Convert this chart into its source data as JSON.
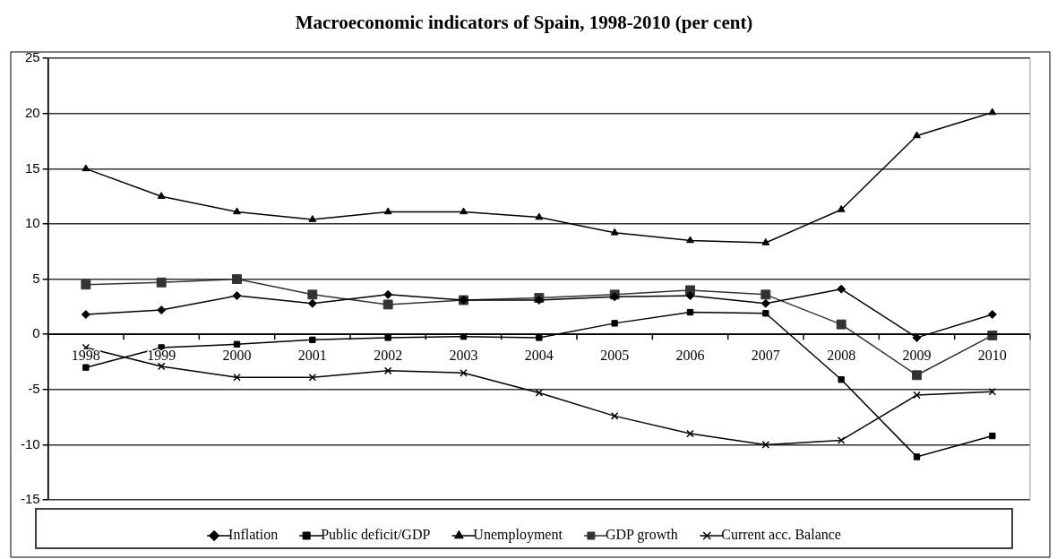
{
  "chart_data": {
    "type": "line",
    "title": "Macroeconomic indicators of Spain, 1998-2010 (per cent)",
    "categories": [
      "1998",
      "1999",
      "2000",
      "2001",
      "2002",
      "2003",
      "2004",
      "2005",
      "2006",
      "2007",
      "2008",
      "2009",
      "2010"
    ],
    "series": [
      {
        "name": "Inflation",
        "color": "#000000",
        "marker": "diamond",
        "values": [
          1.8,
          2.2,
          3.5,
          2.8,
          3.6,
          3.1,
          3.1,
          3.4,
          3.5,
          2.8,
          4.1,
          -0.3,
          1.8
        ]
      },
      {
        "name": "Public deficit/GDP",
        "color": "#000000",
        "marker": "square",
        "values": [
          -3.0,
          -1.2,
          -0.9,
          -0.5,
          -0.3,
          -0.2,
          -0.3,
          1.0,
          2.0,
          1.9,
          -4.1,
          -11.1,
          -9.2
        ]
      },
      {
        "name": "Unemployment",
        "color": "#000000",
        "marker": "triangle",
        "values": [
          15.0,
          12.5,
          11.1,
          10.4,
          11.1,
          11.1,
          10.6,
          9.2,
          8.5,
          8.3,
          11.3,
          18.0,
          20.1
        ]
      },
      {
        "name": "GDP growth",
        "color": "#333333",
        "marker": "square",
        "values": [
          4.5,
          4.7,
          5.0,
          3.6,
          2.7,
          3.1,
          3.3,
          3.6,
          4.0,
          3.6,
          0.9,
          -3.7,
          -0.1
        ]
      },
      {
        "name": "Current acc. Balance",
        "color": "#000000",
        "marker": "cross",
        "values": [
          -1.2,
          -2.9,
          -3.9,
          -3.9,
          -3.3,
          -3.5,
          -5.3,
          -7.4,
          -9.0,
          -10.0,
          -9.6,
          -5.5,
          -5.2
        ]
      }
    ],
    "ylim": [
      -15,
      25
    ],
    "yticks": [
      -15,
      -10,
      -5,
      0,
      5,
      10,
      15,
      20,
      25
    ],
    "grid": "y",
    "legend": "bottom",
    "line_style": "solid"
  }
}
